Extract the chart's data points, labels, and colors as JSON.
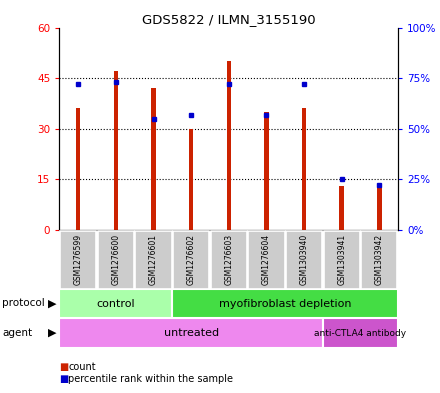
{
  "title": "GDS5822 / ILMN_3155190",
  "samples": [
    "GSM1276599",
    "GSM1276600",
    "GSM1276601",
    "GSM1276602",
    "GSM1276603",
    "GSM1276604",
    "GSM1303940",
    "GSM1303941",
    "GSM1303942"
  ],
  "counts": [
    36,
    47,
    42,
    30,
    50,
    35,
    36,
    13,
    13
  ],
  "percentile_ranks": [
    72,
    73,
    55,
    57,
    72,
    57,
    72,
    25,
    22
  ],
  "ylim_left": [
    0,
    60
  ],
  "ylim_right": [
    0,
    100
  ],
  "yticks_left": [
    0,
    15,
    30,
    45,
    60
  ],
  "yticks_right": [
    0,
    25,
    50,
    75,
    100
  ],
  "ytick_labels_left": [
    "0",
    "15",
    "30",
    "45",
    "60"
  ],
  "ytick_labels_right": [
    "0%",
    "25%",
    "50%",
    "75%",
    "100%"
  ],
  "bar_color": "#cc2200",
  "dot_color": "#0000cc",
  "protocol_groups": [
    {
      "label": "control",
      "start": 0,
      "end": 3,
      "color": "#aaffaa"
    },
    {
      "label": "myofibroblast depletion",
      "start": 3,
      "end": 9,
      "color": "#44dd44"
    }
  ],
  "agent_groups": [
    {
      "label": "untreated",
      "start": 0,
      "end": 7,
      "color": "#ee88ee"
    },
    {
      "label": "anti-CTLA4 antibody",
      "start": 7,
      "end": 9,
      "color": "#cc55cc"
    }
  ],
  "bar_width": 0.12,
  "tick_bg_color": "#cccccc",
  "legend_count_color": "#cc2200",
  "legend_dot_color": "#0000cc"
}
